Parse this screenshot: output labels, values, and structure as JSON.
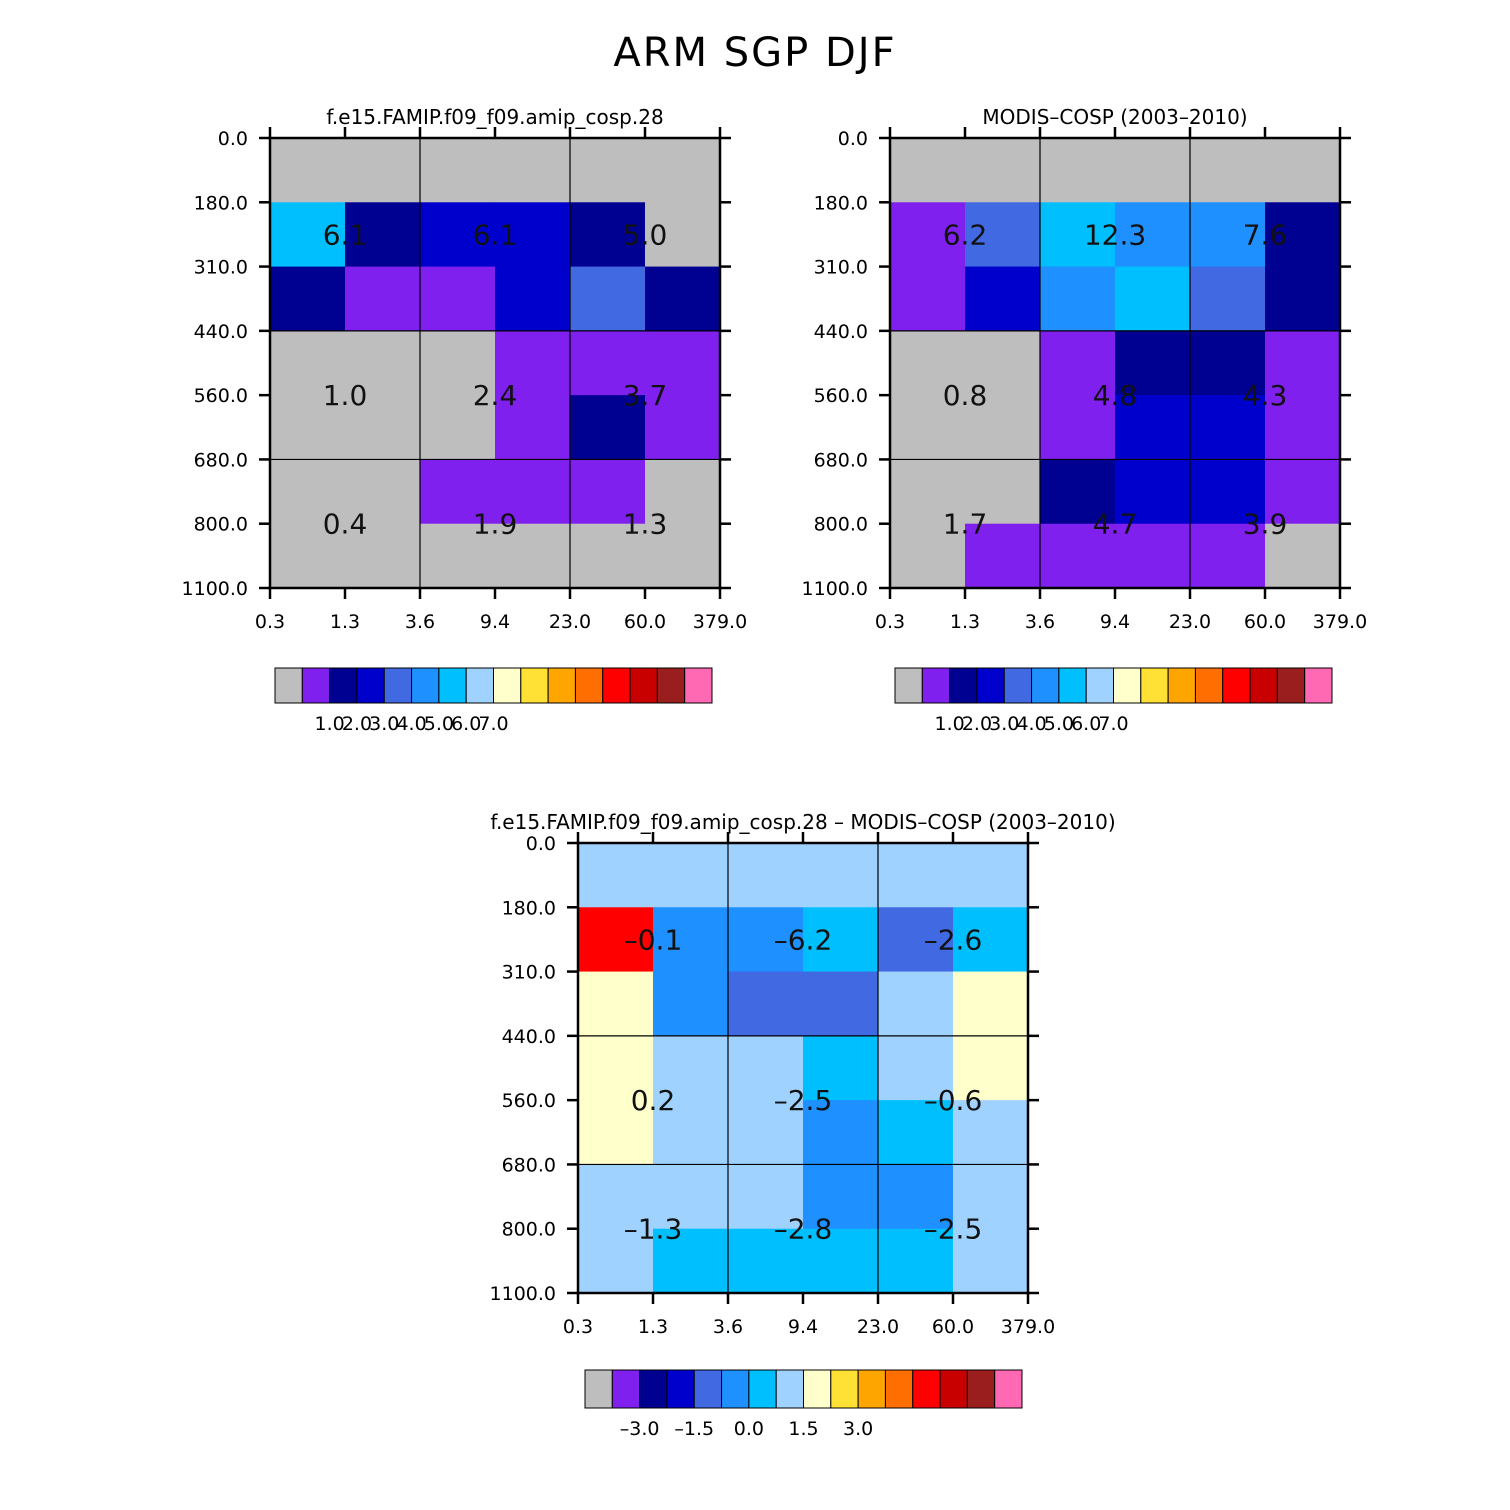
{
  "title": "ARM SGP DJF",
  "chart_data": [
    {
      "type": "heatmap",
      "title": "f.e15.FAMIP.f09_f09.amip_cosp.28",
      "xlabel": "",
      "ylabel": "",
      "x_ticks": [
        "0.3",
        "1.3",
        "3.6",
        "9.4",
        "23.0",
        "60.0",
        "379.0"
      ],
      "y_ticks": [
        "0.0",
        "180.0",
        "310.0",
        "440.0",
        "560.0",
        "680.0",
        "800.0",
        "1100.0"
      ],
      "cell_colors": [
        [
          "#bebebe",
          "#bebebe",
          "#bebebe",
          "#bebebe",
          "#bebebe",
          "#bebebe"
        ],
        [
          "#00bfff",
          "#000091",
          "#0000cd",
          "#0000cd",
          "#000091",
          "#bebebe"
        ],
        [
          "#000091",
          "#8020ee",
          "#8020ee",
          "#0000cd",
          "#4169e1",
          "#000091"
        ],
        [
          "#bebebe",
          "#bebebe",
          "#bebebe",
          "#8020ee",
          "#8020ee",
          "#8020ee"
        ],
        [
          "#bebebe",
          "#bebebe",
          "#bebebe",
          "#8020ee",
          "#000091",
          "#8020ee"
        ],
        [
          "#bebebe",
          "#bebebe",
          "#8020ee",
          "#8020ee",
          "#8020ee",
          "#bebebe"
        ],
        [
          "#bebebe",
          "#bebebe",
          "#bebebe",
          "#bebebe",
          "#bebebe",
          "#bebebe"
        ]
      ],
      "block_values": [
        [
          "6.1",
          "6.1",
          "5.0"
        ],
        [
          "1.0",
          "2.4",
          "3.7"
        ],
        [
          "0.4",
          "1.9",
          "1.3"
        ]
      ],
      "colorbar": {
        "colors": [
          "#bebebe",
          "#8020ee",
          "#000091",
          "#0000cd",
          "#4169e1",
          "#1e90ff",
          "#00bfff",
          "#a0d2ff",
          "#ffffcc",
          "#ffe135",
          "#ffa500",
          "#ff6e00",
          "#ff0000",
          "#c80000",
          "#9b1e1e",
          "#ff69b4"
        ],
        "labels": [
          "1.0",
          "2.0",
          "3.0",
          "4.0",
          "5.0",
          "6.0",
          "7.0"
        ]
      }
    },
    {
      "type": "heatmap",
      "title": "MODIS–COSP (2003–2010)",
      "xlabel": "",
      "ylabel": "",
      "x_ticks": [
        "0.3",
        "1.3",
        "3.6",
        "9.4",
        "23.0",
        "60.0",
        "379.0"
      ],
      "y_ticks": [
        "0.0",
        "180.0",
        "310.0",
        "440.0",
        "560.0",
        "680.0",
        "800.0",
        "1100.0"
      ],
      "cell_colors": [
        [
          "#bebebe",
          "#bebebe",
          "#bebebe",
          "#bebebe",
          "#bebebe",
          "#bebebe"
        ],
        [
          "#8020ee",
          "#4169e1",
          "#00bfff",
          "#1e90ff",
          "#1e90ff",
          "#000091"
        ],
        [
          "#8020ee",
          "#0000cd",
          "#1e90ff",
          "#00bfff",
          "#4169e1",
          "#000091"
        ],
        [
          "#bebebe",
          "#bebebe",
          "#8020ee",
          "#000091",
          "#000091",
          "#8020ee"
        ],
        [
          "#bebebe",
          "#bebebe",
          "#8020ee",
          "#0000cd",
          "#0000cd",
          "#8020ee"
        ],
        [
          "#bebebe",
          "#bebebe",
          "#000091",
          "#0000cd",
          "#0000cd",
          "#8020ee"
        ],
        [
          "#bebebe",
          "#8020ee",
          "#8020ee",
          "#8020ee",
          "#8020ee",
          "#bebebe"
        ]
      ],
      "block_values": [
        [
          "6.2",
          "12.3",
          "7.6"
        ],
        [
          "0.8",
          "4.8",
          "4.3"
        ],
        [
          "1.7",
          "4.7",
          "3.9"
        ]
      ],
      "colorbar": {
        "colors": [
          "#bebebe",
          "#8020ee",
          "#000091",
          "#0000cd",
          "#4169e1",
          "#1e90ff",
          "#00bfff",
          "#a0d2ff",
          "#ffffcc",
          "#ffe135",
          "#ffa500",
          "#ff6e00",
          "#ff0000",
          "#c80000",
          "#9b1e1e",
          "#ff69b4"
        ],
        "labels": [
          "1.0",
          "2.0",
          "3.0",
          "4.0",
          "5.0",
          "6.0",
          "7.0"
        ]
      }
    },
    {
      "type": "heatmap",
      "title": "f.e15.FAMIP.f09_f09.amip_cosp.28 – MODIS–COSP (2003–2010)",
      "xlabel": "",
      "ylabel": "",
      "x_ticks": [
        "0.3",
        "1.3",
        "3.6",
        "9.4",
        "23.0",
        "60.0",
        "379.0"
      ],
      "y_ticks": [
        "0.0",
        "180.0",
        "310.0",
        "440.0",
        "560.0",
        "680.0",
        "800.0",
        "1100.0"
      ],
      "cell_colors": [
        [
          "#a0d2ff",
          "#a0d2ff",
          "#a0d2ff",
          "#a0d2ff",
          "#a0d2ff",
          "#a0d2ff"
        ],
        [
          "#ff0000",
          "#1e90ff",
          "#1e90ff",
          "#00bfff",
          "#4169e1",
          "#00bfff"
        ],
        [
          "#ffffcc",
          "#1e90ff",
          "#4169e1",
          "#4169e1",
          "#a0d2ff",
          "#ffffcc"
        ],
        [
          "#ffffcc",
          "#a0d2ff",
          "#a0d2ff",
          "#00bfff",
          "#a0d2ff",
          "#ffffcc"
        ],
        [
          "#ffffcc",
          "#a0d2ff",
          "#a0d2ff",
          "#1e90ff",
          "#00bfff",
          "#a0d2ff"
        ],
        [
          "#a0d2ff",
          "#a0d2ff",
          "#a0d2ff",
          "#1e90ff",
          "#1e90ff",
          "#a0d2ff"
        ],
        [
          "#a0d2ff",
          "#00bfff",
          "#00bfff",
          "#00bfff",
          "#00bfff",
          "#a0d2ff"
        ]
      ],
      "block_values": [
        [
          "–0.1",
          "–6.2",
          "–2.6"
        ],
        [
          "0.2",
          "–2.5",
          "–0.6"
        ],
        [
          "–1.3",
          "–2.8",
          "–2.5"
        ]
      ],
      "colorbar": {
        "colors": [
          "#bebebe",
          "#8020ee",
          "#000091",
          "#0000cd",
          "#4169e1",
          "#1e90ff",
          "#00bfff",
          "#a0d2ff",
          "#ffffcc",
          "#ffe135",
          "#ffa500",
          "#ff6e00",
          "#ff0000",
          "#c80000",
          "#9b1e1e",
          "#ff69b4"
        ],
        "labels": [
          "–3.0",
          "–1.5",
          "0.0",
          "1.5",
          "3.0"
        ]
      }
    }
  ]
}
